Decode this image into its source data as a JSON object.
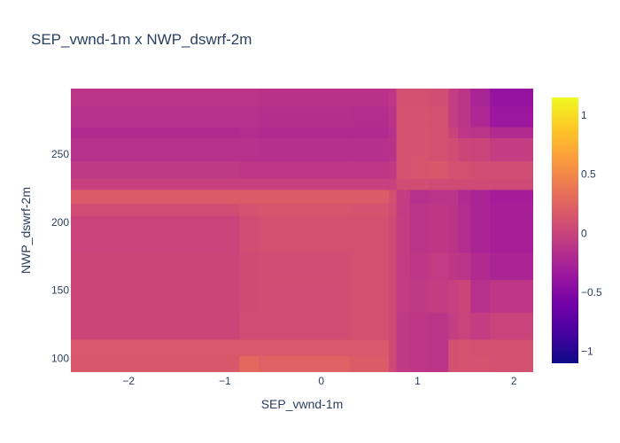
{
  "chart_data": {
    "type": "heatmap",
    "title": "SEP_vwnd-1m x NWP_dswrf-2m",
    "xlabel": "SEP_vwnd-1m",
    "ylabel": "NWP_dswrf-2m",
    "xlim": [
      -2.6,
      2.2
    ],
    "ylim": [
      90,
      298
    ],
    "x_ticks": [
      -2,
      -1,
      0,
      1,
      2
    ],
    "x_tick_labels": [
      "−2",
      "−1",
      "0",
      "1",
      "2"
    ],
    "y_ticks": [
      100,
      150,
      200,
      250
    ],
    "y_tick_labels": [
      "100",
      "150",
      "200",
      "250"
    ],
    "colorscale": [
      "#0d0887",
      "#46039f",
      "#7201a8",
      "#9c179e",
      "#bd3786",
      "#d8576b",
      "#ed7953",
      "#fb9f3a",
      "#fdca26",
      "#f0f921"
    ],
    "zlim": [
      -1.1,
      1.15
    ],
    "colorbar_ticks": [
      1,
      0.5,
      0,
      -0.5,
      -1
    ],
    "colorbar_tick_labels": [
      "1",
      "0.5",
      "0",
      "−0.5",
      "−1"
    ],
    "x_edges": [
      -2.6,
      -0.85,
      -0.65,
      0.3,
      0.7,
      0.78,
      0.92,
      1.12,
      1.32,
      1.42,
      1.55,
      1.75,
      2.2
    ],
    "y_edges": [
      90,
      102,
      114,
      134,
      158,
      178,
      205,
      214,
      224,
      232,
      245,
      262,
      270,
      285,
      298
    ],
    "z": [
      [
        0.15,
        0.28,
        0.22,
        0.18,
        0.05,
        -0.08,
        -0.1,
        -0.12,
        0.1,
        0.12,
        0.12,
        0.1
      ],
      [
        0.16,
        0.16,
        0.16,
        0.16,
        0.06,
        -0.08,
        -0.1,
        -0.12,
        0.1,
        0.12,
        0.1,
        0.1
      ],
      [
        0.02,
        0.08,
        0.08,
        0.1,
        0.06,
        -0.08,
        -0.1,
        -0.12,
        -0.05,
        0.0,
        -0.05,
        0.0
      ],
      [
        0.02,
        0.06,
        0.08,
        0.1,
        0.06,
        -0.05,
        -0.08,
        -0.05,
        -0.02,
        0.02,
        -0.15,
        -0.1
      ],
      [
        0.02,
        0.06,
        0.08,
        0.1,
        0.06,
        -0.05,
        -0.1,
        -0.06,
        -0.1,
        -0.12,
        -0.2,
        -0.25
      ],
      [
        0.0,
        0.08,
        0.1,
        0.1,
        0.06,
        -0.05,
        -0.12,
        -0.1,
        -0.12,
        -0.18,
        -0.25,
        -0.28
      ],
      [
        0.08,
        0.12,
        0.13,
        0.12,
        0.08,
        -0.06,
        -0.12,
        -0.1,
        -0.12,
        -0.18,
        -0.25,
        -0.28
      ],
      [
        0.18,
        0.18,
        0.18,
        0.18,
        0.1,
        -0.05,
        -0.15,
        -0.12,
        -0.12,
        -0.2,
        -0.25,
        -0.3
      ],
      [
        -0.02,
        -0.02,
        -0.02,
        -0.02,
        -0.02,
        0.08,
        0.08,
        0.06,
        0.06,
        0.06,
        0.06,
        0.05
      ],
      [
        -0.08,
        -0.1,
        -0.1,
        -0.1,
        -0.08,
        0.12,
        0.13,
        0.15,
        0.1,
        0.1,
        0.08,
        0.08
      ],
      [
        -0.15,
        -0.15,
        -0.16,
        -0.16,
        -0.14,
        0.12,
        0.12,
        0.1,
        0.08,
        0.02,
        0.0,
        -0.05
      ],
      [
        -0.2,
        -0.18,
        -0.2,
        -0.2,
        -0.15,
        0.12,
        0.12,
        0.1,
        0.0,
        -0.1,
        -0.12,
        -0.2
      ],
      [
        -0.15,
        -0.15,
        -0.17,
        -0.18,
        -0.12,
        0.12,
        0.12,
        0.1,
        -0.05,
        -0.12,
        -0.22,
        -0.35
      ],
      [
        -0.12,
        -0.12,
        -0.14,
        -0.14,
        -0.1,
        0.1,
        0.1,
        0.08,
        -0.05,
        -0.12,
        -0.25,
        -0.4
      ]
    ]
  }
}
